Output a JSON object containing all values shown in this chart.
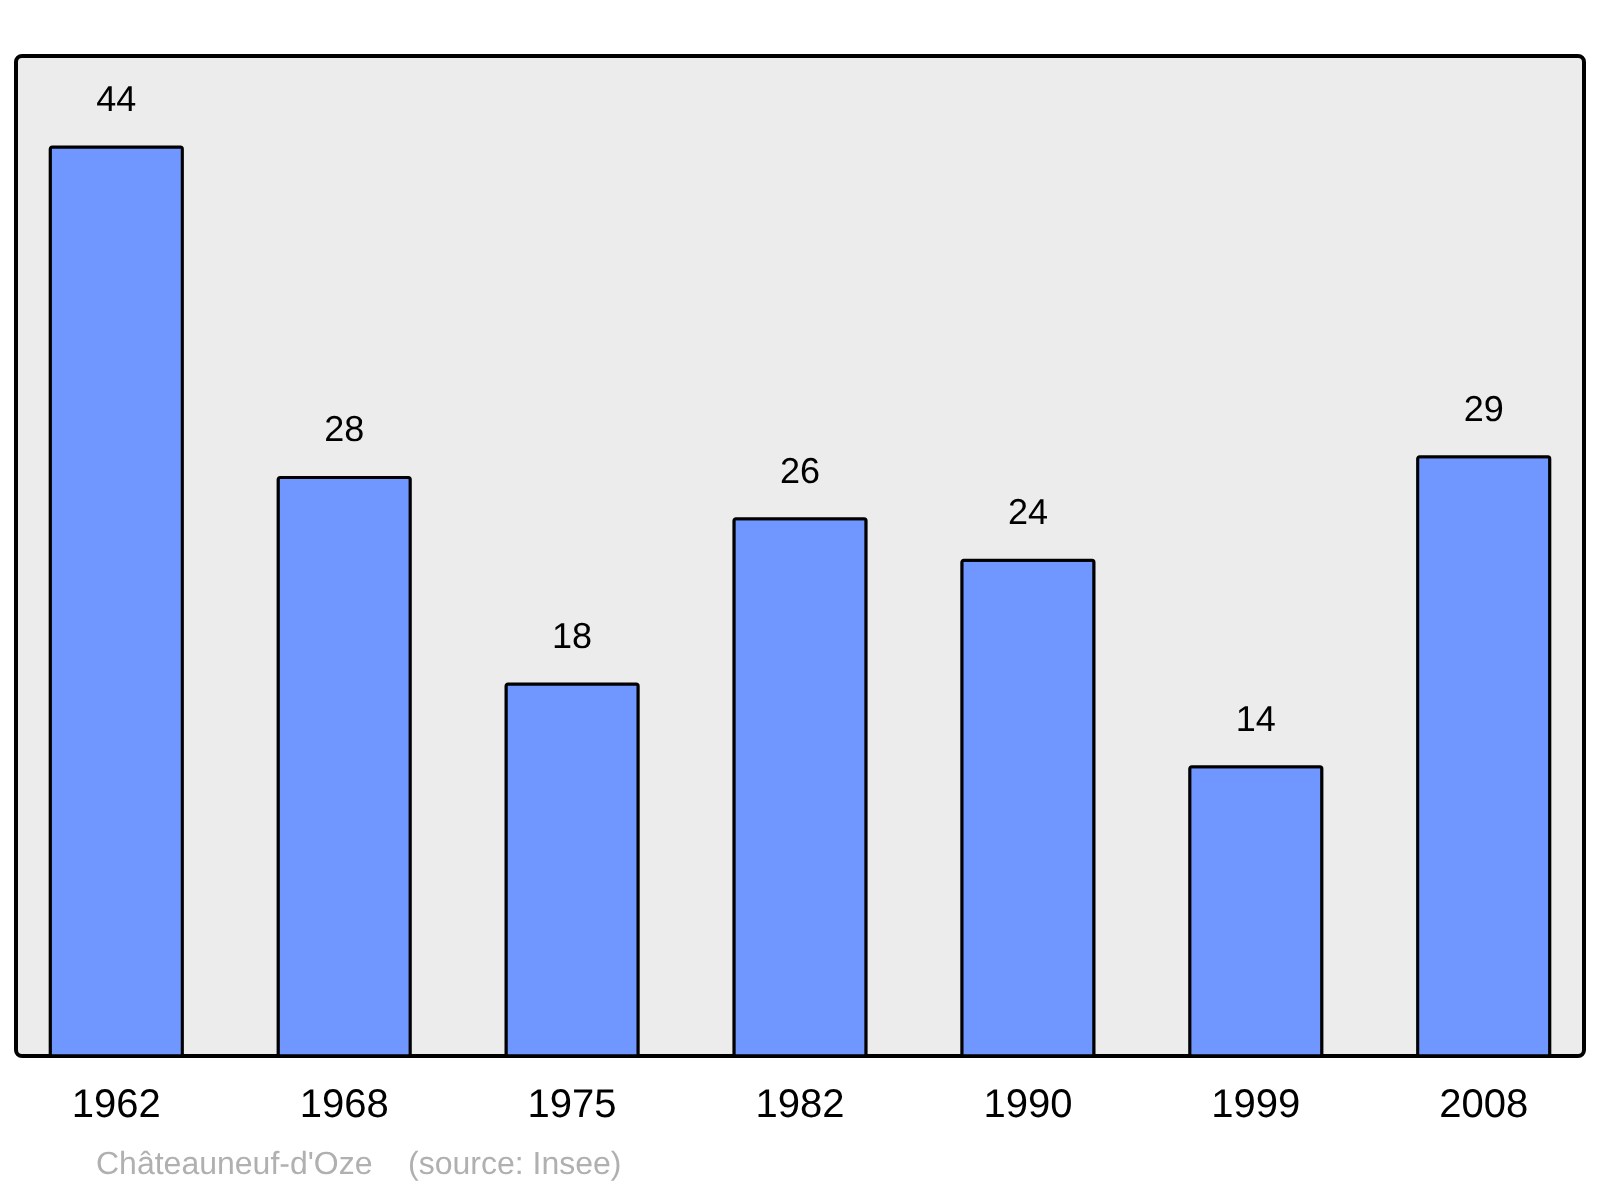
{
  "chart_data": {
    "type": "bar",
    "categories": [
      "1962",
      "1968",
      "1975",
      "1982",
      "1990",
      "1999",
      "2008"
    ],
    "values": [
      44,
      28,
      18,
      26,
      24,
      14,
      29
    ],
    "color": "#7096ff",
    "data_labels": true,
    "grid": false,
    "annotations": [
      "Châteauneuf-d'Oze    (source: Insee)"
    ]
  }
}
